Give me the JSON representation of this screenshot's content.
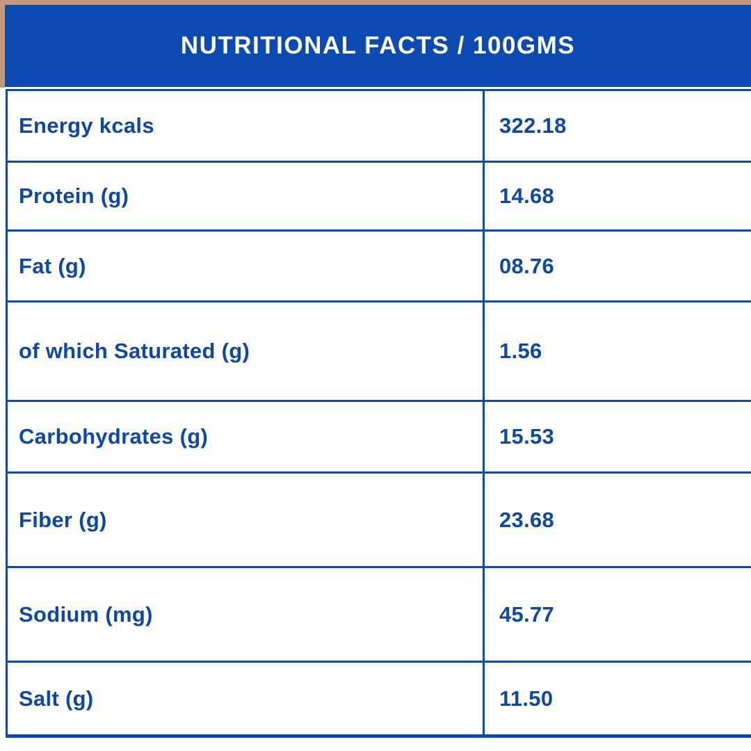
{
  "header": {
    "title": "NUTRITIONAL FACTS / 100GMS"
  },
  "table": {
    "rows": [
      {
        "label": "Energy kcals",
        "value": "322.18"
      },
      {
        "label": "Protein (g)",
        "value": "14.68"
      },
      {
        "label": "Fat (g)",
        "value": "08.76"
      },
      {
        "label": "of which Saturated (g)",
        "value": "1.56"
      },
      {
        "label": "Carbohydrates (g)",
        "value": "15.53"
      },
      {
        "label": "Fiber (g)",
        "value": "23.68"
      },
      {
        "label": "Sodium (mg)",
        "value": "45.77"
      },
      {
        "label": "Salt (g)",
        "value": "11.50"
      }
    ]
  },
  "colors": {
    "header_bg": "#0a4ab2",
    "text_blue": "#0d47a8",
    "border_blue": "#0d4aad",
    "frame_tan": "#c39a7d",
    "background": "#ffffff"
  }
}
